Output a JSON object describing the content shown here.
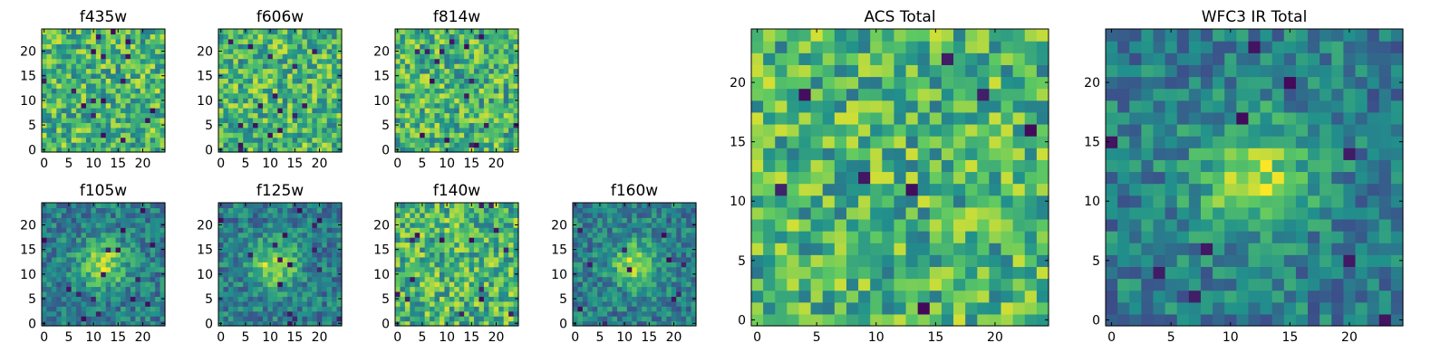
{
  "figure": {
    "description_note": "Grid of 2D image cutouts rendered with the viridis colormap",
    "colormap": [
      "#440154",
      "#3b528b",
      "#21918c",
      "#5ec962",
      "#fde725"
    ]
  },
  "chart_data": [
    {
      "type": "heatmap",
      "title": "f435w",
      "grid_size": 25,
      "seed": 11,
      "style": "noise",
      "xticks": [
        0,
        5,
        10,
        15,
        20
      ],
      "yticks": [
        0,
        5,
        10,
        15,
        20
      ],
      "xlim": [
        -0.5,
        24.5
      ],
      "ylim": [
        -0.5,
        24.5
      ]
    },
    {
      "type": "heatmap",
      "title": "f606w",
      "grid_size": 25,
      "seed": 23,
      "style": "noise",
      "xticks": [
        0,
        5,
        10,
        15,
        20
      ],
      "yticks": [
        0,
        5,
        10,
        15,
        20
      ],
      "xlim": [
        -0.5,
        24.5
      ],
      "ylim": [
        -0.5,
        24.5
      ]
    },
    {
      "type": "heatmap",
      "title": "f814w",
      "grid_size": 25,
      "seed": 37,
      "style": "noise",
      "xticks": [
        0,
        5,
        10,
        15,
        20
      ],
      "yticks": [
        0,
        5,
        10,
        15,
        20
      ],
      "xlim": [
        -0.5,
        24.5
      ],
      "ylim": [
        -0.5,
        24.5
      ]
    },
    {
      "type": "heatmap",
      "title": "f105w",
      "grid_size": 25,
      "seed": 51,
      "style": "source",
      "source_center": [
        12,
        12
      ],
      "xticks": [
        0,
        5,
        10,
        15,
        20
      ],
      "yticks": [
        0,
        5,
        10,
        15,
        20
      ],
      "xlim": [
        -0.5,
        24.5
      ],
      "ylim": [
        -0.5,
        24.5
      ]
    },
    {
      "type": "heatmap",
      "title": "f125w",
      "grid_size": 25,
      "seed": 67,
      "style": "source",
      "source_center": [
        11,
        12
      ],
      "xticks": [
        0,
        5,
        10,
        15,
        20
      ],
      "yticks": [
        0,
        5,
        10,
        15,
        20
      ],
      "xlim": [
        -0.5,
        24.5
      ],
      "ylim": [
        -0.5,
        24.5
      ]
    },
    {
      "type": "heatmap",
      "title": "f140w",
      "grid_size": 25,
      "seed": 79,
      "style": "noise",
      "xticks": [
        0,
        5,
        10,
        15,
        20
      ],
      "yticks": [
        0,
        5,
        10,
        15,
        20
      ],
      "xlim": [
        -0.5,
        24.5
      ],
      "ylim": [
        -0.5,
        24.5
      ]
    },
    {
      "type": "heatmap",
      "title": "f160w",
      "grid_size": 25,
      "seed": 97,
      "style": "source",
      "source_center": [
        12,
        12
      ],
      "xticks": [
        0,
        5,
        10,
        15,
        20
      ],
      "yticks": [
        0,
        5,
        10,
        15,
        20
      ],
      "xlim": [
        -0.5,
        24.5
      ],
      "ylim": [
        -0.5,
        24.5
      ]
    },
    {
      "type": "heatmap",
      "title": "ACS Total",
      "grid_size": 25,
      "seed": 113,
      "style": "noise",
      "xticks": [
        0,
        5,
        10,
        15,
        20
      ],
      "yticks": [
        0,
        5,
        10,
        15,
        20
      ],
      "xlim": [
        -0.5,
        24.5
      ],
      "ylim": [
        -0.5,
        24.5
      ]
    },
    {
      "type": "heatmap",
      "title": "WFC3 IR Total",
      "grid_size": 25,
      "seed": 131,
      "style": "source",
      "source_center": [
        12,
        12
      ],
      "xticks": [
        0,
        5,
        10,
        15,
        20
      ],
      "yticks": [
        0,
        5,
        10,
        15,
        20
      ],
      "xlim": [
        -0.5,
        24.5
      ],
      "ylim": [
        -0.5,
        24.5
      ]
    }
  ]
}
